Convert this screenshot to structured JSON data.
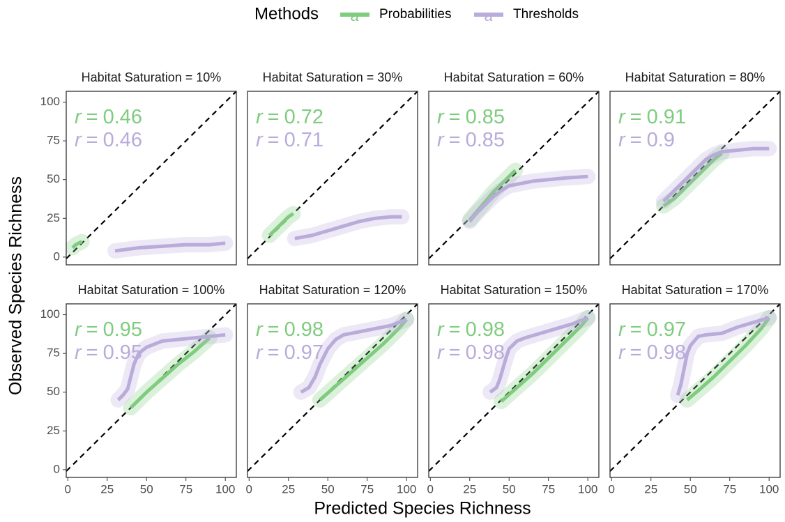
{
  "figure": {
    "legend_title": "Methods",
    "legend_key_text": "a",
    "x_label": "Predicted Species Richness",
    "y_label": "Observed Species Richness",
    "r_symbol": "r",
    "r_equals": "="
  },
  "chart_data": [
    {
      "type": "scatter",
      "title": "Habitat Saturation = 10%",
      "xlim": [
        -1,
        107
      ],
      "ylim": [
        -5,
        107
      ],
      "yticks": [
        0,
        25,
        50,
        75,
        100
      ],
      "series": [
        {
          "name": "Probabilities",
          "color": "#7fcc7f",
          "r": 0.46,
          "x": [
            3,
            5,
            7,
            9
          ],
          "values": [
            6,
            8,
            9,
            10
          ]
        },
        {
          "name": "Thresholds",
          "color": "#b9abda",
          "r": 0.46,
          "x": [
            30,
            45,
            60,
            75,
            90,
            100
          ],
          "values": [
            4,
            6,
            7,
            8,
            8,
            9
          ]
        }
      ]
    },
    {
      "type": "scatter",
      "title": "Habitat Saturation = 30%",
      "xlim": [
        -1,
        107
      ],
      "ylim": [
        -5,
        107
      ],
      "series": [
        {
          "name": "Probabilities",
          "color": "#7fcc7f",
          "r": 0.72,
          "x": [
            13,
            16,
            19,
            22,
            25,
            28
          ],
          "values": [
            14,
            17,
            20,
            23,
            26,
            28
          ]
        },
        {
          "name": "Thresholds",
          "color": "#b9abda",
          "r": 0.71,
          "x": [
            29,
            40,
            50,
            60,
            70,
            80,
            90,
            97
          ],
          "values": [
            12,
            14,
            17,
            20,
            23,
            25,
            26,
            26
          ]
        }
      ]
    },
    {
      "type": "scatter",
      "title": "Habitat Saturation = 60%",
      "xlim": [
        -1,
        107
      ],
      "ylim": [
        -5,
        107
      ],
      "series": [
        {
          "name": "Probabilities",
          "color": "#7fcc7f",
          "r": 0.85,
          "x": [
            25,
            30,
            35,
            40,
            45,
            50,
            54
          ],
          "values": [
            24,
            30,
            36,
            42,
            47,
            52,
            56
          ]
        },
        {
          "name": "Thresholds",
          "color": "#b9abda",
          "r": 0.85,
          "x": [
            25,
            30,
            35,
            40,
            45,
            50,
            55,
            65,
            75,
            85,
            100
          ],
          "values": [
            23,
            29,
            34,
            39,
            43,
            46,
            47,
            49,
            50,
            51,
            52
          ]
        }
      ]
    },
    {
      "type": "scatter",
      "title": "Habitat Saturation = 80%",
      "xlim": [
        -1,
        107
      ],
      "ylim": [
        -5,
        107
      ],
      "series": [
        {
          "name": "Probabilities",
          "color": "#7fcc7f",
          "r": 0.91,
          "x": [
            33,
            40,
            45,
            50,
            55,
            60,
            65,
            70
          ],
          "values": [
            33,
            38,
            43,
            48,
            53,
            58,
            63,
            67
          ]
        },
        {
          "name": "Thresholds",
          "color": "#b9abda",
          "r": 0.9,
          "x": [
            33,
            40,
            45,
            50,
            55,
            60,
            65,
            70,
            80,
            90,
            100
          ],
          "values": [
            36,
            43,
            48,
            53,
            58,
            63,
            66,
            68,
            69,
            70,
            70
          ]
        }
      ]
    },
    {
      "type": "scatter",
      "title": "Habitat Saturation = 100%",
      "xlim": [
        -1,
        107
      ],
      "ylim": [
        -5,
        107
      ],
      "xticks": [
        0,
        25,
        50,
        75,
        100
      ],
      "yticks": [
        0,
        25,
        50,
        75,
        100
      ],
      "series": [
        {
          "name": "Probabilities",
          "color": "#7fcc7f",
          "r": 0.95,
          "x": [
            40,
            50,
            60,
            70,
            80,
            90
          ],
          "values": [
            40,
            50,
            59,
            68,
            76,
            85
          ]
        },
        {
          "name": "Thresholds",
          "color": "#b9abda",
          "r": 0.95,
          "x": [
            32,
            35,
            38,
            40,
            42,
            45,
            50,
            55,
            60,
            70,
            80,
            90,
            100
          ],
          "values": [
            45,
            48,
            52,
            60,
            68,
            75,
            79,
            81,
            83,
            84,
            85,
            86,
            87
          ]
        }
      ]
    },
    {
      "type": "scatter",
      "title": "Habitat Saturation = 120%",
      "xlim": [
        -1,
        107
      ],
      "ylim": [
        -5,
        107
      ],
      "xticks": [
        0,
        25,
        50,
        75,
        100
      ],
      "series": [
        {
          "name": "Probabilities",
          "color": "#7fcc7f",
          "r": 0.98,
          "x": [
            45,
            55,
            65,
            75,
            85,
            95,
            100
          ],
          "values": [
            45,
            54,
            63,
            72,
            81,
            91,
            97
          ]
        },
        {
          "name": "Thresholds",
          "color": "#b9abda",
          "r": 0.97,
          "x": [
            33,
            38,
            42,
            45,
            50,
            55,
            60,
            70,
            80,
            90,
            100
          ],
          "values": [
            50,
            53,
            60,
            68,
            78,
            84,
            87,
            89,
            91,
            93,
            97
          ]
        }
      ]
    },
    {
      "type": "scatter",
      "title": "Habitat Saturation = 150%",
      "xlim": [
        -1,
        107
      ],
      "ylim": [
        -5,
        107
      ],
      "xticks": [
        0,
        25,
        50,
        75,
        100
      ],
      "series": [
        {
          "name": "Probabilities",
          "color": "#7fcc7f",
          "r": 0.98,
          "x": [
            45,
            55,
            65,
            75,
            85,
            95,
            100
          ],
          "values": [
            44,
            53,
            62,
            72,
            82,
            92,
            98
          ]
        },
        {
          "name": "Thresholds",
          "color": "#b9abda",
          "r": 0.98,
          "x": [
            38,
            42,
            44,
            46,
            48,
            50,
            55,
            60,
            70,
            80,
            90,
            100
          ],
          "values": [
            50,
            53,
            58,
            65,
            72,
            78,
            83,
            85,
            88,
            91,
            94,
            98
          ]
        }
      ]
    },
    {
      "type": "scatter",
      "title": "Habitat Saturation = 170%",
      "xlim": [
        -1,
        107
      ],
      "ylim": [
        -5,
        107
      ],
      "xticks": [
        0,
        25,
        50,
        75,
        100
      ],
      "series": [
        {
          "name": "Probabilities",
          "color": "#7fcc7f",
          "r": 0.97,
          "x": [
            48,
            55,
            65,
            75,
            85,
            95,
            100
          ],
          "values": [
            45,
            51,
            60,
            70,
            80,
            91,
            98
          ]
        },
        {
          "name": "Thresholds",
          "color": "#b9abda",
          "r": 0.98,
          "x": [
            42,
            44,
            46,
            48,
            50,
            55,
            60,
            70,
            80,
            90,
            100
          ],
          "values": [
            48,
            55,
            65,
            75,
            80,
            86,
            87,
            88,
            92,
            95,
            98
          ]
        }
      ]
    }
  ]
}
